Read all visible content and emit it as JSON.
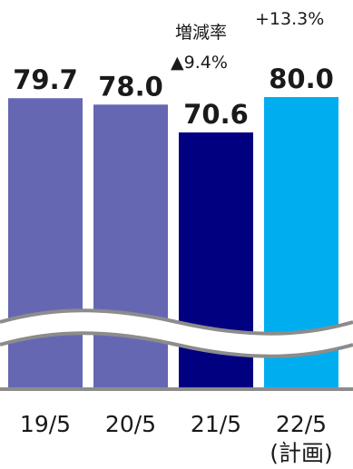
{
  "chart_data": {
    "type": "bar",
    "title": "",
    "xlabel": "",
    "ylabel": "",
    "categories": [
      "19/5",
      "20/5",
      "21/5",
      "22/5"
    ],
    "category_sublabels": [
      "",
      "",
      "",
      "(計画)"
    ],
    "values": [
      79.7,
      78.0,
      70.6,
      80.0
    ],
    "value_labels": [
      "79.7",
      "78.0",
      "70.6",
      "80.0"
    ],
    "colors": [
      "#6667b3",
      "#6667b3",
      "#000080",
      "#00aeef"
    ],
    "axis_break": true,
    "annotations": {
      "rate_label": "増減率",
      "rate_21_5": "▲9.4%",
      "rate_22_5": "+13.3%"
    }
  }
}
